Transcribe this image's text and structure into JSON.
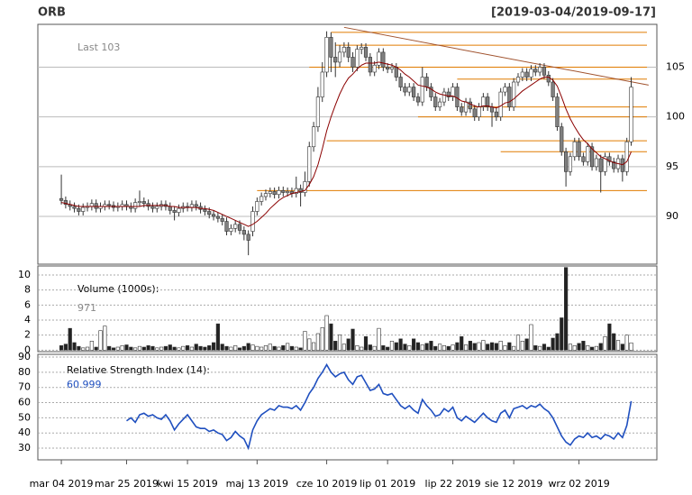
{
  "chart_data": [
    {
      "type": "candlestick",
      "title": "ORB",
      "subtitle": "[2019-03-04/2019-09-17]",
      "annotation": "Last 103",
      "xlim": [
        -5.4,
        136.9
      ],
      "xticks": [
        {
          "value": 0,
          "label": "mar 04 2019"
        },
        {
          "value": 15,
          "label": "mar 25 2019"
        },
        {
          "value": 29,
          "label": "kwi 15 2019"
        },
        {
          "value": 45,
          "label": "maj 13 2019"
        },
        {
          "value": 61,
          "label": "cze 10 2019"
        },
        {
          "value": 75,
          "label": "lip 01 2019"
        },
        {
          "value": 90,
          "label": "lip 22 2019"
        },
        {
          "value": 104,
          "label": "sie 12 2019"
        },
        {
          "value": 119,
          "label": "wrz 02 2019"
        }
      ],
      "ylim": [
        85.2,
        109.3
      ],
      "yticks": [
        90,
        95,
        100,
        105
      ],
      "grid": true,
      "up_color": "#ffffff",
      "down_color": "#808080",
      "open": [
        91.8,
        91.6,
        91.2,
        91.0,
        90.8,
        90.5,
        90.9,
        91.0,
        91.3,
        90.8,
        91.0,
        91.2,
        91.1,
        90.9,
        91.0,
        91.2,
        91.0,
        90.8,
        91.4,
        91.5,
        91.3,
        91.0,
        90.8,
        91.0,
        91.2,
        91.0,
        90.6,
        90.4,
        90.8,
        91.0,
        90.9,
        91.2,
        91.0,
        90.7,
        90.5,
        90.2,
        90.0,
        89.8,
        89.5,
        88.5,
        88.8,
        89.2,
        88.6,
        88.2,
        88.5,
        90.5,
        91.5,
        92.0,
        92.3,
        92.5,
        92.2,
        92.6,
        92.4,
        92.5,
        92.3,
        92.8,
        92.4,
        93.5,
        97.0,
        99.0,
        102.0,
        104.5,
        108.0,
        106.0,
        105.5,
        106.5,
        107.0,
        106.0,
        105.0,
        106.8,
        107.0,
        106.0,
        104.5,
        105.2,
        106.5,
        105.0,
        104.8,
        105.0,
        104.0,
        103.0,
        102.5,
        103.0,
        102.0,
        101.5,
        104.0,
        103.0,
        102.0,
        101.0,
        101.5,
        102.5,
        102.0,
        103.0,
        101.0,
        100.5,
        101.5,
        100.8,
        100.0,
        101.0,
        102.0,
        101.0,
        100.5,
        100.0,
        102.5,
        103.0,
        101.0,
        103.5,
        104.0,
        104.5,
        104.0,
        104.8,
        104.5,
        105.0,
        104.2,
        103.5,
        102.0,
        99.0,
        96.5,
        94.5,
        96.0,
        97.5,
        96.0,
        95.5,
        97.0,
        95.0,
        95.8,
        94.5,
        96.0,
        95.5,
        94.8,
        95.8,
        94.5,
        97.5
      ],
      "high": [
        94.2,
        92.0,
        91.6,
        91.4,
        91.2,
        91.3,
        91.4,
        91.7,
        91.7,
        91.4,
        91.6,
        91.6,
        91.5,
        91.4,
        91.6,
        91.6,
        91.4,
        91.8,
        92.6,
        91.9,
        91.7,
        91.4,
        91.4,
        91.6,
        91.6,
        91.4,
        91.0,
        91.2,
        91.4,
        91.4,
        91.6,
        91.6,
        91.4,
        91.1,
        90.9,
        90.6,
        90.4,
        90.2,
        89.9,
        89.2,
        89.6,
        89.6,
        89.0,
        88.6,
        91.0,
        91.9,
        92.4,
        92.7,
        92.9,
        92.9,
        93.0,
        93.0,
        92.9,
        92.9,
        94.0,
        93.2,
        94.5,
        97.5,
        99.5,
        103.0,
        105.5,
        108.6,
        108.5,
        107.5,
        107.2,
        107.5,
        107.5,
        106.5,
        107.2,
        107.4,
        107.4,
        106.4,
        105.6,
        106.9,
        106.9,
        105.4,
        105.4,
        105.4,
        104.4,
        103.4,
        103.4,
        103.4,
        102.4,
        105.0,
        104.4,
        103.4,
        102.4,
        101.9,
        102.9,
        102.9,
        103.4,
        103.4,
        101.4,
        101.9,
        101.9,
        101.2,
        101.4,
        102.4,
        102.4,
        101.4,
        100.9,
        102.9,
        103.4,
        103.4,
        103.9,
        104.4,
        104.9,
        104.9,
        105.2,
        105.2,
        105.4,
        105.4,
        104.6,
        103.9,
        102.4,
        99.4,
        96.9,
        96.4,
        97.9,
        97.9,
        96.4,
        97.4,
        97.4,
        96.2,
        96.2,
        96.4,
        96.4,
        95.9,
        96.2,
        96.2,
        97.9,
        104.0
      ],
      "low": [
        91.2,
        90.8,
        90.6,
        90.4,
        90.1,
        90.1,
        90.5,
        90.6,
        90.4,
        90.4,
        90.6,
        90.7,
        90.5,
        90.5,
        90.6,
        90.6,
        90.4,
        90.4,
        91.0,
        90.9,
        90.6,
        90.4,
        90.4,
        90.6,
        90.6,
        90.2,
        89.6,
        90.0,
        90.4,
        90.5,
        90.5,
        90.6,
        90.3,
        90.1,
        89.8,
        89.6,
        89.4,
        89.1,
        88.1,
        88.1,
        88.4,
        88.2,
        87.6,
        86.1,
        88.0,
        90.1,
        91.1,
        91.6,
        91.9,
        91.8,
        91.8,
        92.0,
        92.0,
        91.9,
        91.9,
        91.0,
        92.0,
        93.0,
        96.5,
        98.5,
        101.5,
        104.0,
        104.5,
        104.0,
        105.0,
        106.0,
        105.5,
        104.5,
        104.6,
        106.3,
        105.6,
        104.1,
        104.1,
        104.8,
        104.6,
        104.4,
        104.4,
        103.6,
        102.6,
        102.1,
        102.1,
        101.6,
        101.1,
        101.1,
        102.6,
        101.6,
        100.6,
        100.6,
        101.1,
        101.6,
        101.6,
        100.6,
        100.1,
        100.1,
        100.4,
        99.6,
        99.6,
        100.6,
        100.6,
        99.0,
        99.6,
        99.6,
        102.1,
        100.6,
        100.6,
        103.1,
        103.6,
        103.6,
        103.6,
        104.1,
        104.1,
        103.8,
        103.1,
        101.6,
        98.6,
        96.1,
        93.0,
        94.1,
        95.6,
        95.6,
        95.1,
        95.1,
        94.6,
        94.6,
        92.4,
        94.1,
        95.1,
        94.4,
        94.4,
        93.5,
        94.1,
        97.1
      ],
      "close": [
        91.6,
        91.2,
        91.0,
        90.8,
        90.5,
        90.9,
        91.0,
        91.3,
        90.8,
        91.0,
        91.2,
        91.1,
        90.9,
        91.0,
        91.2,
        91.0,
        90.8,
        91.4,
        91.5,
        91.3,
        91.0,
        90.8,
        91.0,
        91.2,
        91.0,
        90.6,
        90.4,
        90.8,
        91.0,
        90.9,
        91.2,
        91.0,
        90.7,
        90.5,
        90.2,
        90.0,
        89.8,
        89.5,
        88.5,
        88.8,
        89.2,
        88.6,
        88.2,
        87.6,
        90.5,
        91.5,
        92.0,
        92.3,
        92.5,
        92.2,
        92.6,
        92.4,
        92.5,
        92.3,
        92.8,
        92.4,
        93.5,
        97.0,
        99.0,
        102.0,
        104.5,
        108.0,
        106.0,
        105.5,
        106.5,
        107.0,
        106.0,
        105.0,
        106.8,
        107.0,
        106.0,
        104.5,
        105.2,
        106.5,
        105.0,
        104.8,
        105.0,
        104.0,
        103.0,
        102.5,
        103.0,
        102.0,
        101.5,
        104.0,
        103.0,
        102.0,
        101.0,
        101.5,
        102.5,
        102.0,
        103.0,
        101.0,
        100.5,
        101.5,
        100.8,
        100.0,
        101.0,
        102.0,
        101.0,
        100.5,
        100.0,
        102.5,
        103.0,
        101.0,
        103.5,
        104.0,
        104.5,
        104.0,
        104.8,
        104.5,
        105.0,
        104.2,
        103.5,
        102.0,
        99.0,
        96.5,
        94.5,
        96.0,
        97.5,
        96.0,
        95.5,
        97.0,
        95.0,
        95.8,
        94.5,
        96.0,
        95.5,
        94.8,
        95.8,
        94.5,
        97.5,
        103.0
      ],
      "sma": {
        "color": "#8b0000",
        "values": [
          91.4,
          91.3,
          91.2,
          91.1,
          91.0,
          91.0,
          91.0,
          91.0,
          91.0,
          91.0,
          91.0,
          91.0,
          91.0,
          91.0,
          91.0,
          91.0,
          91.0,
          91.0,
          91.0,
          91.1,
          91.1,
          91.1,
          91.1,
          91.1,
          91.1,
          91.0,
          91.0,
          90.9,
          90.9,
          90.9,
          90.9,
          90.9,
          90.8,
          90.8,
          90.7,
          90.6,
          90.4,
          90.2,
          90.0,
          89.8,
          89.6,
          89.4,
          89.2,
          89.0,
          89.2,
          89.5,
          89.9,
          90.3,
          90.8,
          91.2,
          91.6,
          91.9,
          92.1,
          92.3,
          92.4,
          92.5,
          92.6,
          93.2,
          94.0,
          95.2,
          96.8,
          98.6,
          100.0,
          101.2,
          102.3,
          103.2,
          103.9,
          104.3,
          104.8,
          105.2,
          105.4,
          105.4,
          105.4,
          105.5,
          105.4,
          105.3,
          105.2,
          105.0,
          104.7,
          104.3,
          104.0,
          103.6,
          103.2,
          103.1,
          103.0,
          102.8,
          102.5,
          102.3,
          102.2,
          102.1,
          102.1,
          101.9,
          101.6,
          101.5,
          101.3,
          101.1,
          101.0,
          101.1,
          101.1,
          101.0,
          100.9,
          101.1,
          101.4,
          101.5,
          101.8,
          102.2,
          102.6,
          102.9,
          103.2,
          103.5,
          103.8,
          104.0,
          104.0,
          103.7,
          103.1,
          102.0,
          100.8,
          99.8,
          99.0,
          98.3,
          97.7,
          97.3,
          96.8,
          96.4,
          96.0,
          95.8,
          95.6,
          95.4,
          95.3,
          95.2,
          95.5,
          96.5
        ]
      },
      "levels_color": "#e07b00",
      "levels": [
        {
          "level": 108.5,
          "from": 62
        },
        {
          "level": 107.2,
          "from": 63
        },
        {
          "level": 105,
          "from": 57
        },
        {
          "level": 103.8,
          "from": 91
        },
        {
          "level": 101,
          "from": 92
        },
        {
          "level": 100,
          "from": 82
        },
        {
          "level": 97.6,
          "from": 61
        },
        {
          "level": 96.5,
          "from": 101
        },
        {
          "level": 92.6,
          "from": 45
        }
      ],
      "trend": {
        "color": "#a0522d",
        "x": [
          65,
          135
        ],
        "y": [
          109,
          103.2
        ]
      }
    },
    {
      "type": "volume",
      "label": "Volume (1000s):",
      "annotation": "971",
      "ylim": [
        -0.2,
        11.2
      ],
      "yticks": [
        0,
        2,
        4,
        6,
        8,
        10
      ],
      "values": [
        0.6,
        0.8,
        2.9,
        1.0,
        0.5,
        0.3,
        0.4,
        1.2,
        0.4,
        2.6,
        3.2,
        0.5,
        0.3,
        0.4,
        0.6,
        0.7,
        0.4,
        0.3,
        0.5,
        0.4,
        0.6,
        0.5,
        0.3,
        0.4,
        0.5,
        0.7,
        0.4,
        0.3,
        0.5,
        0.6,
        0.4,
        0.8,
        0.5,
        0.4,
        0.6,
        1.0,
        3.5,
        0.8,
        0.5,
        0.4,
        0.6,
        0.3,
        0.5,
        0.9,
        0.7,
        0.5,
        0.4,
        0.6,
        0.8,
        0.5,
        0.4,
        0.6,
        0.9,
        0.5,
        0.4,
        0.3,
        2.5,
        1.5,
        1.0,
        2.2,
        3.0,
        4.6,
        3.5,
        1.2,
        2.0,
        0.8,
        1.5,
        2.8,
        0.6,
        0.4,
        1.8,
        0.7,
        0.5,
        2.9,
        0.6,
        0.4,
        1.2,
        1.0,
        1.5,
        0.8,
        0.6,
        1.5,
        1.0,
        0.7,
        0.9,
        1.2,
        0.5,
        0.8,
        0.6,
        0.5,
        0.7,
        1.0,
        1.8,
        0.7,
        1.2,
        0.9,
        1.0,
        1.3,
        0.8,
        1.0,
        0.9,
        1.2,
        0.6,
        1.0,
        0.5,
        2.0,
        1.2,
        1.5,
        3.4,
        0.6,
        0.5,
        0.8,
        0.4,
        1.6,
        2.2,
        4.3,
        11.0,
        0.8,
        0.6,
        0.9,
        1.2,
        0.6,
        0.4,
        0.5,
        0.9,
        1.8,
        3.5,
        2.2,
        1.3,
        0.8,
        2.0,
        0.971
      ]
    },
    {
      "type": "line",
      "label": "Relative Strength Index (14):",
      "color": "#1f4fbf",
      "ylim": [
        22.3,
        91.8
      ],
      "yticks": [
        30,
        40,
        50,
        60,
        70,
        80,
        90
      ],
      "values": [
        null,
        null,
        null,
        null,
        null,
        null,
        null,
        null,
        null,
        null,
        null,
        null,
        null,
        null,
        null,
        48,
        50,
        47,
        52,
        53,
        51,
        52,
        50,
        49,
        52,
        48,
        42,
        46,
        49,
        52,
        48,
        44,
        43,
        43,
        41,
        42,
        40,
        39,
        35,
        37,
        41,
        38,
        36,
        30,
        42,
        48,
        52,
        54,
        56,
        55,
        58,
        57,
        57,
        56,
        58,
        55,
        60,
        66,
        70,
        76,
        80,
        85,
        80,
        77,
        79,
        80,
        75,
        72,
        77,
        78,
        73,
        68,
        69,
        72,
        66,
        65,
        66,
        62,
        58,
        56,
        58,
        55,
        53,
        62,
        58,
        55,
        51,
        52,
        56,
        54,
        57,
        50,
        48,
        51,
        49,
        47,
        50,
        53,
        50,
        48,
        47,
        53,
        55,
        50,
        56,
        57,
        58,
        56,
        58,
        57,
        59,
        56,
        54,
        50,
        44,
        38,
        34,
        32,
        36,
        38,
        37,
        40,
        37,
        38,
        36,
        39,
        38,
        36,
        40,
        37,
        45,
        60.999
      ]
    }
  ]
}
